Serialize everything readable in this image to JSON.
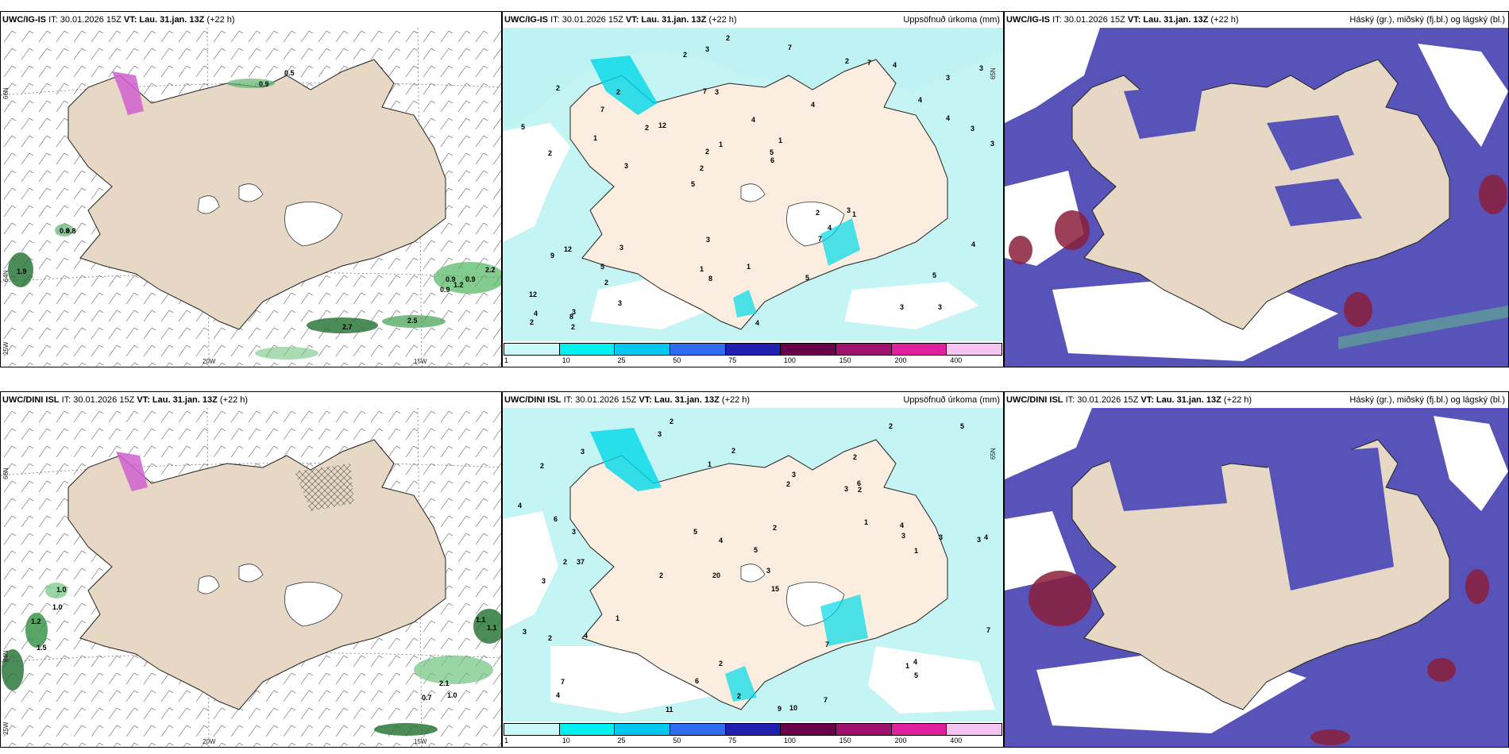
{
  "top_row": {
    "wind": {
      "model": "UWC/IG-IS",
      "it": "IT: 30.01.2026 15Z",
      "vt_label": "VT:",
      "vt": "Lau. 31.jan. 13Z",
      "lead": "(+22 h)",
      "lat_labels": [
        "66N",
        "64N",
        "25W"
      ],
      "lon_labels": [
        "20W",
        "15W"
      ],
      "values": [
        "0.5",
        "0.9",
        "0.8",
        "0.8",
        "0.9",
        "0.9",
        "1.2",
        "0.9",
        "2.2",
        "2.7",
        "2.5",
        "1.9"
      ]
    },
    "precip": {
      "model": "UWC/IG-IS",
      "it": "IT: 30.01.2026 15Z",
      "vt_label": "VT:",
      "vt": "Lau. 31.jan. 13Z",
      "lead": "(+22 h)",
      "title": "Uppsöfnuð úrkoma (mm)",
      "lat_labels": [
        "65N"
      ],
      "values": [
        "3",
        "2",
        "3",
        "5",
        "4",
        "3",
        "7",
        "4",
        "12",
        "12",
        "12",
        "2",
        "3",
        "1",
        "1",
        "2",
        "3",
        "3",
        "2",
        "4",
        "2",
        "1",
        "2",
        "2",
        "2",
        "3",
        "3",
        "5",
        "3",
        "4",
        "2",
        "1",
        "7",
        "3",
        "3",
        "5",
        "4",
        "8",
        "6",
        "9",
        "4",
        "3",
        "4",
        "5",
        "5",
        "2",
        "2",
        "1",
        "4",
        "2",
        "3",
        "5",
        "7",
        "7",
        "8",
        "7",
        "2",
        "1",
        "4",
        "3"
      ]
    },
    "cloud": {
      "model": "UWC/IG-IS",
      "it": "IT: 30.01.2026 15Z",
      "vt_label": "VT:",
      "vt": "Lau. 31.jan. 13Z",
      "lead": "(+22 h)",
      "title": "Háský (gr.), miðský (fj.bl.) og lágský (bl.)"
    }
  },
  "bottom_row": {
    "wind": {
      "model": "UWC/DINI ISL",
      "it": "IT: 30.01.2026 15Z",
      "vt_label": "VT:",
      "vt": "Lau. 31.jan. 13Z",
      "lead": "(+22 h)",
      "lat_labels": [
        "66N",
        "64N",
        "25W"
      ],
      "lon_labels": [
        "20W",
        "15W"
      ],
      "values": [
        "1.0",
        "1.0",
        "1.2",
        "1.5",
        "1.1",
        "1.1",
        "2.1",
        "1.0",
        "0.7"
      ]
    },
    "precip": {
      "model": "UWC/DINI ISL",
      "it": "IT: 30.01.2026 15Z",
      "vt_label": "VT:",
      "vt": "Lau. 31.jan. 13Z",
      "lead": "(+22 h)",
      "title": "Uppsöfnuð úrkoma (mm)",
      "lat_labels": [
        "65N"
      ],
      "values": [
        "2",
        "2",
        "3",
        "20",
        "15",
        "37",
        "2",
        "3",
        "3",
        "2",
        "5",
        "4",
        "3",
        "2",
        "9",
        "10",
        "2",
        "2",
        "1",
        "1",
        "3",
        "2",
        "4",
        "3",
        "3",
        "6",
        "4",
        "3",
        "4",
        "2",
        "1",
        "3",
        "4",
        "5",
        "7",
        "7",
        "4",
        "6",
        "5",
        "2",
        "7",
        "11",
        "7",
        "3",
        "2",
        "2",
        "5",
        "6",
        "4",
        "3",
        "1",
        "1",
        "2"
      ]
    },
    "cloud": {
      "model": "UWC/DINI ISL",
      "it": "IT: 30.01.2026 15Z",
      "vt_label": "VT:",
      "vt": "Lau. 31.jan. 13Z",
      "lead": "(+22 h)",
      "title": "Háský (gr.), miðský (fj.bl.) og lágský (bl.)"
    }
  },
  "colorbar": {
    "labels": [
      "1",
      "10",
      "25",
      "50",
      "75",
      "100",
      "150",
      "200",
      "400"
    ],
    "colors": [
      "#c8fafa",
      "#00f0f0",
      "#00c8f0",
      "#2f6cf0",
      "#1f1fb0",
      "#6a004a",
      "#a0106e",
      "#e0209e",
      "#f6c4f0"
    ]
  },
  "colors": {
    "land": "#e6d8c4",
    "land_precip": "#fbeee0",
    "sea": "#ffffff",
    "light_precip": "#bff3f3",
    "cloud_mid": "#5753b8",
    "cloud_low": "#3f82e0",
    "cloud_high": "#8b1f3a",
    "wind_green": "#2a7a3a"
  }
}
